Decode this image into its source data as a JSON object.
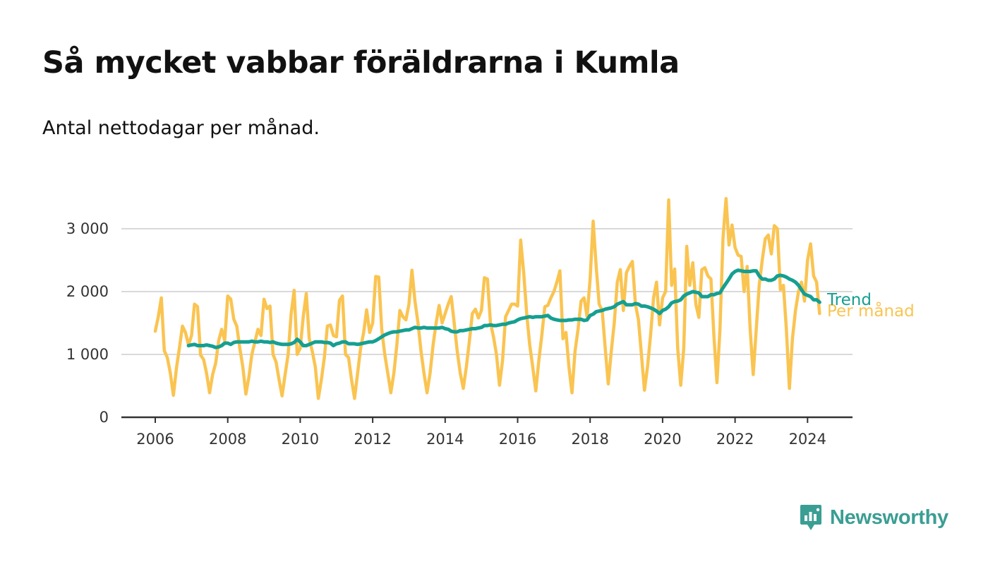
{
  "title": "Så mycket vabbar föräldrarna i Kumla",
  "subtitle": "Antal nettodagar per månad.",
  "brand": {
    "name": "Newsworthy",
    "icon": "newsworthy-logo-icon"
  },
  "colors": {
    "monthly": "#fac451",
    "trend": "#159f91",
    "grid": "#d9d9d9",
    "axis": "#333333",
    "brand": "#3a9e93"
  },
  "chart_data": {
    "type": "line",
    "title": "Så mycket vabbar föräldrarna i Kumla",
    "subtitle": "Antal nettodagar per månad.",
    "xlabel": "",
    "ylabel": "",
    "xlim": [
      2005.5,
      2025.2
    ],
    "ylim": [
      0,
      3500
    ],
    "yticks": [
      0,
      1000,
      2000,
      3000
    ],
    "ytick_labels": [
      "0",
      "1 000",
      "2 000",
      "3 000"
    ],
    "xticks": [
      2006,
      2008,
      2010,
      2012,
      2014,
      2016,
      2018,
      2020,
      2022,
      2024
    ],
    "xtick_labels": [
      "2006",
      "2008",
      "2010",
      "2012",
      "2014",
      "2016",
      "2018",
      "2020",
      "2022",
      "2024"
    ],
    "grid": true,
    "legend": "direct labels at right end of lines",
    "series": [
      {
        "name": "Per månad",
        "color": "#fac451",
        "start": "2006-01",
        "frequency": "monthly",
        "values": [
          1370,
          1600,
          1900,
          1060,
          950,
          700,
          350,
          780,
          1100,
          1450,
          1350,
          1150,
          1300,
          1800,
          1760,
          990,
          920,
          700,
          390,
          680,
          860,
          1220,
          1400,
          1220,
          1930,
          1880,
          1560,
          1450,
          1100,
          800,
          370,
          640,
          1000,
          1200,
          1400,
          1300,
          1880,
          1730,
          1770,
          1000,
          880,
          600,
          340,
          680,
          1000,
          1650,
          2020,
          1000,
          1100,
          1600,
          1970,
          1250,
          1050,
          800,
          300,
          600,
          950,
          1450,
          1470,
          1300,
          1280,
          1860,
          1930,
          1000,
          950,
          600,
          300,
          700,
          1100,
          1350,
          1710,
          1350,
          1500,
          2240,
          2230,
          1400,
          1000,
          700,
          390,
          700,
          1150,
          1700,
          1600,
          1550,
          1800,
          2340,
          1850,
          1500,
          1050,
          700,
          390,
          700,
          1150,
          1500,
          1780,
          1500,
          1650,
          1800,
          1920,
          1500,
          1050,
          700,
          460,
          800,
          1200,
          1650,
          1720,
          1580,
          1700,
          2220,
          2200,
          1500,
          1280,
          1000,
          510,
          900,
          1600,
          1700,
          1800,
          1800,
          1770,
          2820,
          2300,
          1650,
          1150,
          800,
          420,
          900,
          1300,
          1760,
          1780,
          1900,
          2000,
          2150,
          2330,
          1250,
          1350,
          800,
          390,
          1050,
          1400,
          1850,
          1900,
          1600,
          2200,
          3120,
          2400,
          1800,
          1700,
          1100,
          530,
          1050,
          1500,
          2150,
          2350,
          1700,
          2300,
          2400,
          2480,
          1800,
          1550,
          1000,
          430,
          800,
          1300,
          1900,
          2150,
          1470,
          1900,
          2000,
          3460,
          2100,
          2360,
          1100,
          510,
          1100,
          2720,
          2100,
          2460,
          1800,
          1590,
          2350,
          2380,
          2250,
          2200,
          1300,
          550,
          1400,
          2850,
          3480,
          2740,
          3060,
          2700,
          2580,
          2560,
          2000,
          2400,
          1400,
          680,
          1400,
          2100,
          2500,
          2840,
          2900,
          2600,
          3050,
          3000,
          2030,
          2100,
          1400,
          460,
          1250,
          1700,
          2000,
          2150,
          1850,
          2500,
          2760,
          2250,
          2150,
          1650
        ]
      },
      {
        "name": "Trend",
        "color": "#159f91",
        "start": "2006-12",
        "frequency": "monthly",
        "values": [
          1140,
          1150,
          1160,
          1140,
          1140,
          1140,
          1150,
          1140,
          1130,
          1110,
          1120,
          1140,
          1180,
          1180,
          1160,
          1190,
          1200,
          1200,
          1200,
          1200,
          1200,
          1210,
          1200,
          1200,
          1210,
          1200,
          1200,
          1190,
          1200,
          1180,
          1170,
          1160,
          1160,
          1160,
          1170,
          1190,
          1240,
          1200,
          1140,
          1140,
          1160,
          1180,
          1200,
          1200,
          1200,
          1190,
          1190,
          1180,
          1140,
          1170,
          1180,
          1200,
          1200,
          1170,
          1170,
          1170,
          1160,
          1170,
          1180,
          1190,
          1200,
          1200,
          1220,
          1250,
          1280,
          1310,
          1330,
          1350,
          1360,
          1360,
          1370,
          1380,
          1390,
          1390,
          1410,
          1430,
          1420,
          1420,
          1430,
          1420,
          1420,
          1420,
          1420,
          1420,
          1430,
          1410,
          1400,
          1370,
          1360,
          1360,
          1380,
          1380,
          1390,
          1400,
          1410,
          1410,
          1420,
          1430,
          1460,
          1460,
          1470,
          1460,
          1460,
          1470,
          1480,
          1480,
          1500,
          1510,
          1520,
          1550,
          1570,
          1580,
          1590,
          1600,
          1590,
          1600,
          1600,
          1600,
          1610,
          1620,
          1580,
          1560,
          1550,
          1540,
          1540,
          1540,
          1550,
          1550,
          1560,
          1560,
          1560,
          1540,
          1550,
          1620,
          1640,
          1680,
          1690,
          1700,
          1720,
          1730,
          1740,
          1760,
          1800,
          1820,
          1840,
          1790,
          1790,
          1790,
          1810,
          1800,
          1770,
          1770,
          1760,
          1740,
          1720,
          1690,
          1650,
          1700,
          1720,
          1760,
          1820,
          1840,
          1850,
          1870,
          1930,
          1960,
          1980,
          2000,
          1990,
          1980,
          1920,
          1920,
          1920,
          1950,
          1950,
          1970,
          1980,
          2060,
          2130,
          2200,
          2280,
          2320,
          2340,
          2330,
          2320,
          2320,
          2320,
          2330,
          2330,
          2250,
          2200,
          2200,
          2180,
          2180,
          2200,
          2250,
          2260,
          2250,
          2230,
          2200,
          2180,
          2150,
          2100,
          2030,
          1960,
          1940,
          1920,
          1870,
          1870,
          1830
        ]
      }
    ]
  }
}
